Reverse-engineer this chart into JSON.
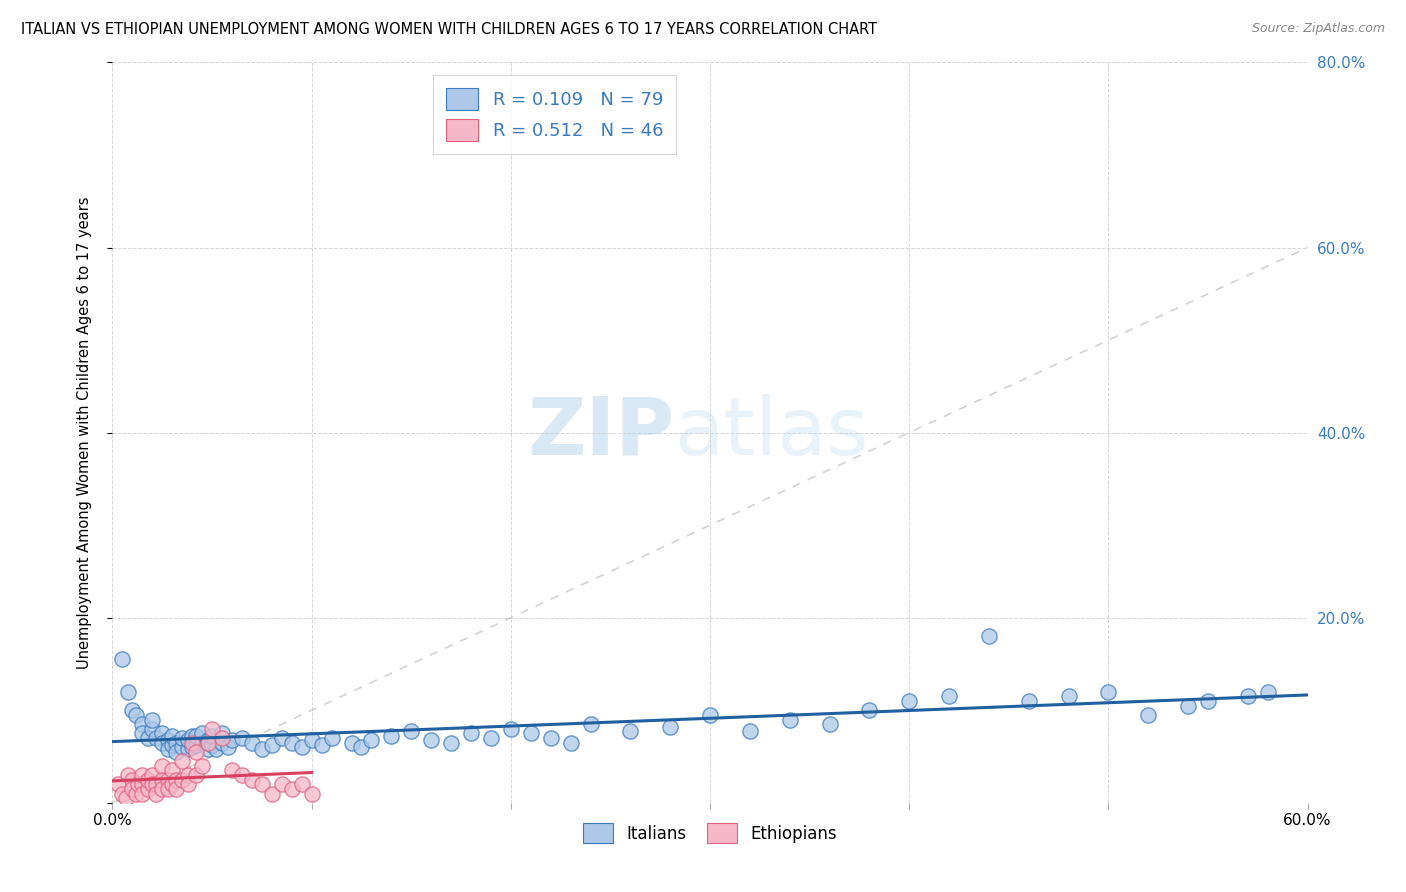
{
  "title": "ITALIAN VS ETHIOPIAN UNEMPLOYMENT AMONG WOMEN WITH CHILDREN AGES 6 TO 17 YEARS CORRELATION CHART",
  "source": "Source: ZipAtlas.com",
  "ylabel": "Unemployment Among Women with Children Ages 6 to 17 years",
  "xlim": [
    0.0,
    0.6
  ],
  "ylim": [
    0.0,
    0.8
  ],
  "xtick_positions": [
    0.0,
    0.1,
    0.2,
    0.3,
    0.4,
    0.5,
    0.6
  ],
  "ytick_positions": [
    0.0,
    0.2,
    0.4,
    0.6,
    0.8
  ],
  "xticklabels_show": [
    "0.0%",
    "",
    "",
    "",
    "",
    "",
    "60.0%"
  ],
  "yticklabels_right": [
    "",
    "20.0%",
    "40.0%",
    "60.0%",
    "80.0%"
  ],
  "italian_fill": "#adc8e8",
  "ethiopian_fill": "#f5b8c8",
  "italian_edge": "#3a7bbf",
  "ethiopian_edge": "#e06080",
  "italian_line_color": "#2060a0",
  "ethiopian_line_color": "#d84060",
  "legend_text_color": "#3a7bbf",
  "r_italian": 0.109,
  "n_italian": 79,
  "r_ethiopian": 0.512,
  "n_ethiopian": 46,
  "italians_x": [
    0.005,
    0.008,
    0.01,
    0.012,
    0.015,
    0.015,
    0.018,
    0.02,
    0.02,
    0.022,
    0.025,
    0.025,
    0.028,
    0.028,
    0.03,
    0.03,
    0.032,
    0.032,
    0.035,
    0.035,
    0.038,
    0.038,
    0.04,
    0.04,
    0.042,
    0.042,
    0.045,
    0.045,
    0.048,
    0.048,
    0.05,
    0.05,
    0.052,
    0.055,
    0.055,
    0.058,
    0.06,
    0.065,
    0.07,
    0.075,
    0.08,
    0.085,
    0.09,
    0.095,
    0.1,
    0.105,
    0.11,
    0.12,
    0.125,
    0.13,
    0.14,
    0.15,
    0.16,
    0.17,
    0.18,
    0.19,
    0.2,
    0.21,
    0.22,
    0.23,
    0.24,
    0.26,
    0.28,
    0.3,
    0.32,
    0.34,
    0.36,
    0.38,
    0.4,
    0.42,
    0.44,
    0.46,
    0.48,
    0.5,
    0.52,
    0.54,
    0.55,
    0.57,
    0.58
  ],
  "italians_y": [
    0.155,
    0.12,
    0.1,
    0.095,
    0.085,
    0.075,
    0.07,
    0.08,
    0.09,
    0.07,
    0.075,
    0.065,
    0.068,
    0.058,
    0.062,
    0.072,
    0.065,
    0.055,
    0.06,
    0.07,
    0.058,
    0.068,
    0.06,
    0.072,
    0.062,
    0.072,
    0.065,
    0.075,
    0.068,
    0.058,
    0.062,
    0.072,
    0.058,
    0.065,
    0.075,
    0.06,
    0.068,
    0.07,
    0.065,
    0.058,
    0.062,
    0.07,
    0.065,
    0.06,
    0.068,
    0.062,
    0.07,
    0.065,
    0.06,
    0.068,
    0.072,
    0.078,
    0.068,
    0.065,
    0.075,
    0.07,
    0.08,
    0.075,
    0.07,
    0.065,
    0.085,
    0.078,
    0.082,
    0.095,
    0.078,
    0.09,
    0.085,
    0.1,
    0.11,
    0.115,
    0.18,
    0.11,
    0.115,
    0.12,
    0.095,
    0.105,
    0.11,
    0.115,
    0.12
  ],
  "ethiopians_x": [
    0.003,
    0.005,
    0.007,
    0.008,
    0.01,
    0.01,
    0.012,
    0.013,
    0.015,
    0.015,
    0.015,
    0.018,
    0.018,
    0.02,
    0.02,
    0.022,
    0.022,
    0.025,
    0.025,
    0.025,
    0.028,
    0.028,
    0.03,
    0.03,
    0.032,
    0.032,
    0.035,
    0.035,
    0.038,
    0.038,
    0.04,
    0.042,
    0.042,
    0.045,
    0.048,
    0.05,
    0.055,
    0.06,
    0.065,
    0.07,
    0.075,
    0.08,
    0.085,
    0.09,
    0.095,
    0.1
  ],
  "ethiopians_y": [
    0.02,
    0.01,
    0.005,
    0.03,
    0.025,
    0.015,
    0.01,
    0.02,
    0.02,
    0.03,
    0.01,
    0.015,
    0.025,
    0.03,
    0.02,
    0.02,
    0.01,
    0.04,
    0.025,
    0.015,
    0.025,
    0.015,
    0.035,
    0.02,
    0.025,
    0.015,
    0.045,
    0.025,
    0.03,
    0.02,
    0.065,
    0.055,
    0.03,
    0.04,
    0.065,
    0.08,
    0.07,
    0.035,
    0.03,
    0.025,
    0.02,
    0.01,
    0.02,
    0.015,
    0.02,
    0.01
  ],
  "background_color": "#ffffff",
  "grid_color": "#cccccc",
  "watermark_zip": "ZIP",
  "watermark_atlas": "atlas",
  "marker_size": 120
}
